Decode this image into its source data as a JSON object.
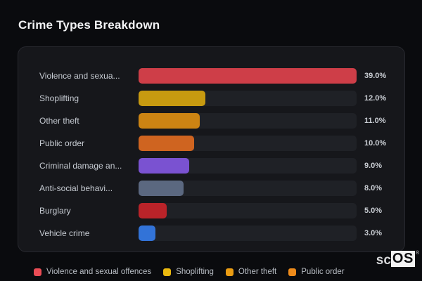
{
  "page_title": "Crime Types Breakdown",
  "colors": {
    "page_background": "#0a0b0e",
    "panel_background": "#16171b",
    "panel_border": "#27282e",
    "track_background": "#1f2126",
    "label_text": "#c6cbd2",
    "value_text": "#c8ccd2",
    "title_text": "#f3f4f6",
    "legend_text": "#b8bdc4"
  },
  "chart_data": {
    "type": "bar",
    "orientation": "horizontal",
    "title": "Crime Types Breakdown",
    "xlabel": "",
    "ylabel": "",
    "value_axis_max": 39.0,
    "grid": false,
    "legend_position": "bottom",
    "categories": [
      "Violence and sexua...",
      "Shoplifting",
      "Other theft",
      "Public order",
      "Criminal damage an...",
      "Anti-social behavi...",
      "Burglary",
      "Vehicle crime"
    ],
    "values": [
      39.0,
      12.0,
      11.0,
      10.0,
      9.0,
      8.0,
      5.0,
      3.0
    ],
    "value_labels": [
      "39.0%",
      "12.0%",
      "11.0%",
      "10.0%",
      "9.0%",
      "8.0%",
      "5.0%",
      "3.0%"
    ],
    "bar_colors": [
      "#ce3e48",
      "#c79a10",
      "#cc8413",
      "#cf6420",
      "#7a52d1",
      "#5b6880",
      "#ba2329",
      "#3273d8"
    ],
    "legend": [
      {
        "label": "Violence and sexual offences",
        "color": "#ea4c55"
      },
      {
        "label": "Shoplifting",
        "color": "#eab90f"
      },
      {
        "label": "Other theft",
        "color": "#eb9d13"
      },
      {
        "label": "Public order",
        "color": "#ee8b1b"
      }
    ]
  },
  "logo": {
    "prefix": "sc",
    "suffix": "OS",
    "registered": "®"
  }
}
